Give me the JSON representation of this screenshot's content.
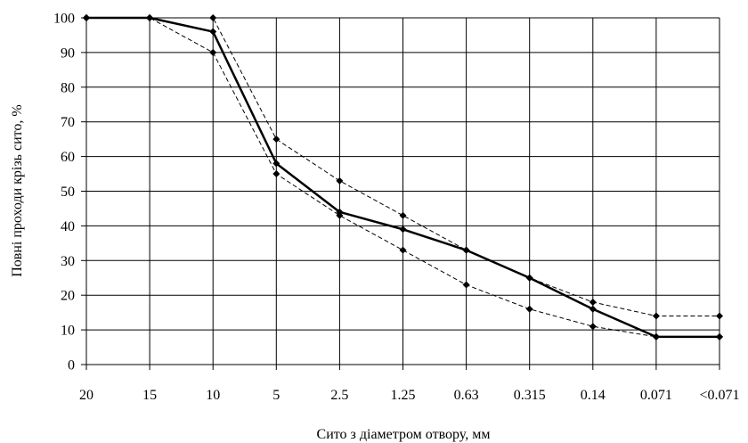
{
  "chart_data": {
    "type": "line",
    "title": "",
    "xlabel": "Сито з діаметром отвору, мм",
    "ylabel": "Повні проходи крізь сито, %",
    "categories": [
      "20",
      "15",
      "10",
      "5",
      "2.5",
      "1.25",
      "0.63",
      "0.315",
      "0.14",
      "0.071",
      "<0.071"
    ],
    "ylim": [
      0,
      100
    ],
    "yticks": [
      0,
      10,
      20,
      30,
      40,
      50,
      60,
      70,
      80,
      90,
      100
    ],
    "grid": true,
    "series": [
      {
        "values": [
          100,
          100,
          96,
          58,
          44,
          39,
          33,
          25,
          16,
          8,
          8
        ],
        "style": "solid",
        "color": "#000000"
      },
      {
        "values": [
          100,
          100,
          100,
          65,
          53,
          43,
          33,
          25,
          18,
          14,
          14
        ],
        "style": "dashed",
        "color": "#000000"
      },
      {
        "values": [
          100,
          100,
          90,
          55,
          43,
          33,
          23,
          16,
          11,
          8,
          8
        ],
        "style": "dashed",
        "color": "#000000"
      }
    ]
  }
}
